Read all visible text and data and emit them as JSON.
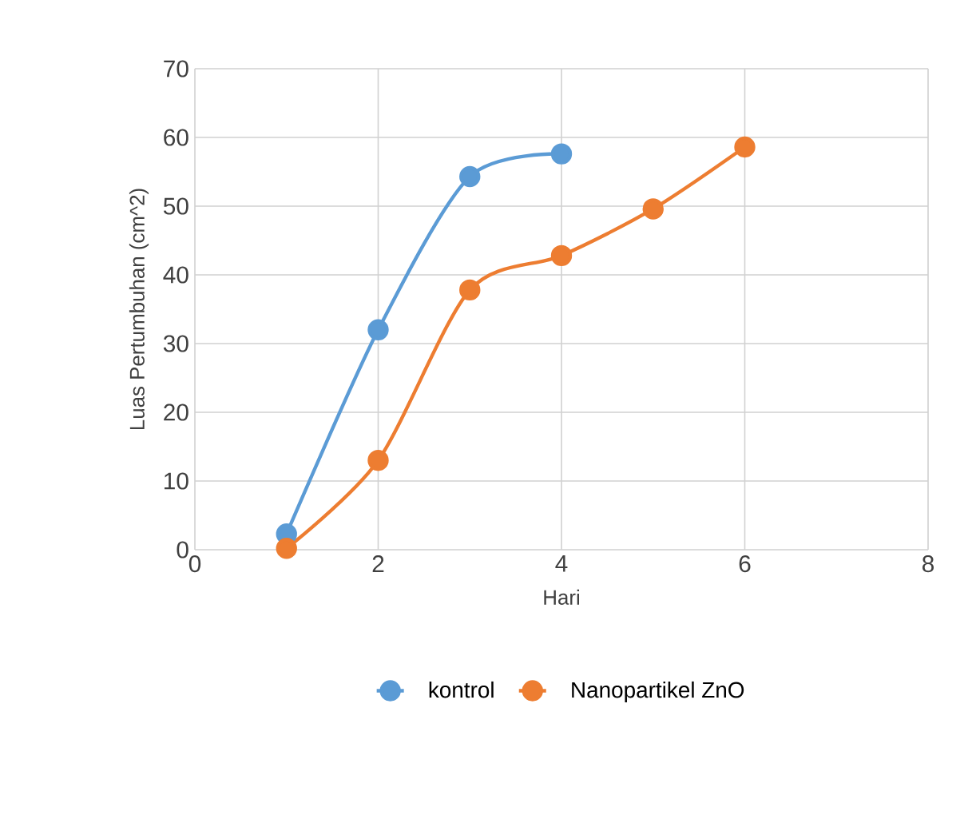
{
  "chart_data": {
    "type": "line",
    "xlabel": "Hari",
    "ylabel": "Luas Pertumbuhan (cm^2)",
    "xlim": [
      0,
      8
    ],
    "xticks": [
      0,
      2,
      4,
      6,
      8
    ],
    "ylim": [
      0,
      70
    ],
    "yticks": [
      0,
      10,
      20,
      30,
      40,
      50,
      60,
      70
    ],
    "grid": true,
    "legend": "bottom",
    "marker": "circle",
    "line_style": "solid",
    "series": [
      {
        "name": "kontrol",
        "color": "#5b9bd5",
        "x": [
          1,
          2,
          3,
          4
        ],
        "values": [
          2.3,
          32,
          54.3,
          57.6
        ]
      },
      {
        "name": "Nanopartikel ZnO",
        "color": "#ed7d31",
        "x": [
          1,
          2,
          3,
          4,
          5,
          6
        ],
        "values": [
          0.2,
          13,
          37.8,
          42.8,
          49.6,
          58.6
        ]
      }
    ]
  }
}
